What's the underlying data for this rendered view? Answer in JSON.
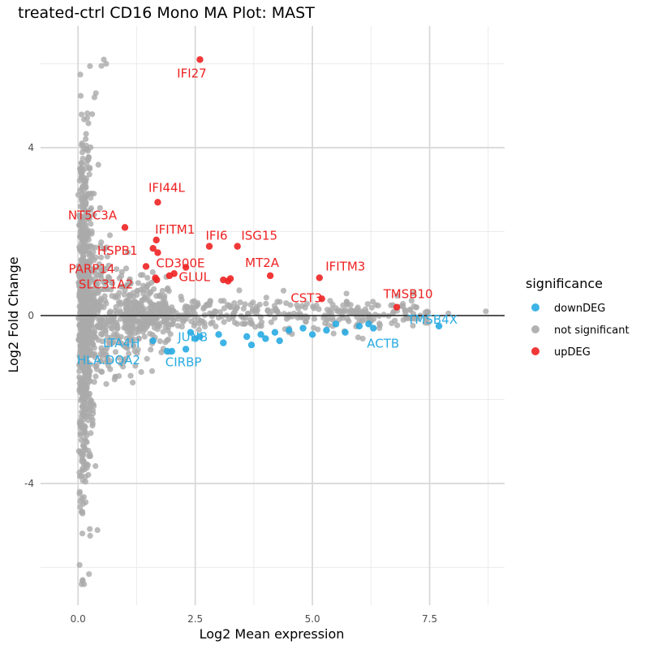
{
  "chart_data": {
    "type": "scatter",
    "title": "treated-ctrl CD16 Mono MA Plot: MAST",
    "xlabel": "Log2 Mean expression",
    "ylabel": "Log2 Fold Change",
    "xlim": [
      -0.8,
      9.1
    ],
    "ylim": [
      -6.9,
      6.9
    ],
    "x_ticks": [
      0,
      2.5,
      5,
      7.5
    ],
    "x_tick_labels": [
      "0.0",
      "2.5",
      "5.0",
      "7.5"
    ],
    "y_ticks": [
      -4,
      0,
      4
    ],
    "y_tick_labels": [
      "-4",
      "0",
      "4"
    ],
    "hline": 0,
    "grid": true,
    "legend": {
      "title": "significance",
      "position": "right",
      "entries": [
        {
          "label": "downDEG",
          "color": "#29ABE2"
        },
        {
          "label": "not significant",
          "color": "#AAAAAA"
        },
        {
          "label": "upDEG",
          "color": "#EE2222"
        }
      ]
    },
    "series": [
      {
        "name": "upDEG",
        "color": "#EE2222",
        "points": [
          {
            "gene": "IFI27",
            "x": 2.6,
            "y": 6.1,
            "labeled": true
          },
          {
            "gene": "IFI44L",
            "x": 1.7,
            "y": 2.7,
            "labeled": true
          },
          {
            "gene": "NT5C3A",
            "x": 1.0,
            "y": 2.1,
            "labeled": true
          },
          {
            "gene": "IFITM1",
            "x": 1.67,
            "y": 1.8,
            "labeled": true
          },
          {
            "gene": "HSPB1",
            "x": 1.6,
            "y": 1.6,
            "labeled": true
          },
          {
            "gene": "IFI6",
            "x": 2.8,
            "y": 1.65,
            "labeled": true
          },
          {
            "gene": "ISG15",
            "x": 3.4,
            "y": 1.65,
            "labeled": true
          },
          {
            "gene": "CD300E",
            "x": 1.7,
            "y": 1.5,
            "labeled": true
          },
          {
            "gene": "PARP14",
            "x": 1.45,
            "y": 1.17,
            "labeled": true
          },
          {
            "gene": "MT2A",
            "x": 4.1,
            "y": 0.95,
            "labeled": true
          },
          {
            "gene": "GLUL",
            "x": 2.05,
            "y": 1.0,
            "labeled": true
          },
          {
            "gene": "SLC31A2",
            "x": 1.65,
            "y": 0.9,
            "labeled": true
          },
          {
            "gene": "IFITM3",
            "x": 5.15,
            "y": 0.9,
            "labeled": true
          },
          {
            "gene": "CST3",
            "x": 5.2,
            "y": 0.4,
            "labeled": true
          },
          {
            "gene": "TMSB10",
            "x": 6.8,
            "y": 0.2,
            "labeled": true
          },
          {
            "gene": "",
            "x": 1.95,
            "y": 0.95,
            "labeled": false
          },
          {
            "gene": "",
            "x": 2.3,
            "y": 1.15,
            "labeled": false
          },
          {
            "gene": "",
            "x": 3.1,
            "y": 0.85,
            "labeled": false
          },
          {
            "gene": "",
            "x": 3.2,
            "y": 0.82,
            "labeled": false
          },
          {
            "gene": "",
            "x": 3.25,
            "y": 0.88,
            "labeled": false
          },
          {
            "gene": "",
            "x": 1.68,
            "y": 0.85,
            "labeled": false
          }
        ]
      },
      {
        "name": "downDEG",
        "color": "#29ABE2",
        "points": [
          {
            "gene": "TMSB4X",
            "x": 7.7,
            "y": -0.25,
            "labeled": true
          },
          {
            "gene": "ACTB",
            "x": 6.3,
            "y": -0.3,
            "labeled": true
          },
          {
            "gene": "LTA4H",
            "x": 1.6,
            "y": -0.6,
            "labeled": true
          },
          {
            "gene": "JUNB",
            "x": 2.5,
            "y": -0.55,
            "labeled": true
          },
          {
            "gene": "HLA.DQA2",
            "x": 1.9,
            "y": -0.85,
            "labeled": true
          },
          {
            "gene": "CIRBP",
            "x": 2.3,
            "y": -0.8,
            "labeled": true
          },
          {
            "gene": "",
            "x": 2.0,
            "y": -0.85,
            "labeled": false
          },
          {
            "gene": "",
            "x": 2.4,
            "y": -0.4,
            "labeled": false
          },
          {
            "gene": "",
            "x": 2.6,
            "y": -0.5,
            "labeled": false
          },
          {
            "gene": "",
            "x": 3.0,
            "y": -0.45,
            "labeled": false
          },
          {
            "gene": "",
            "x": 3.1,
            "y": -0.65,
            "labeled": false
          },
          {
            "gene": "",
            "x": 3.6,
            "y": -0.5,
            "labeled": false
          },
          {
            "gene": "",
            "x": 3.7,
            "y": -0.7,
            "labeled": false
          },
          {
            "gene": "",
            "x": 3.9,
            "y": -0.45,
            "labeled": false
          },
          {
            "gene": "",
            "x": 4.0,
            "y": -0.55,
            "labeled": false
          },
          {
            "gene": "",
            "x": 4.2,
            "y": -0.4,
            "labeled": false
          },
          {
            "gene": "",
            "x": 4.3,
            "y": -0.6,
            "labeled": false
          },
          {
            "gene": "",
            "x": 4.5,
            "y": -0.35,
            "labeled": false
          },
          {
            "gene": "",
            "x": 4.8,
            "y": -0.3,
            "labeled": false
          },
          {
            "gene": "",
            "x": 5.0,
            "y": -0.45,
            "labeled": false
          },
          {
            "gene": "",
            "x": 5.3,
            "y": -0.35,
            "labeled": false
          },
          {
            "gene": "",
            "x": 5.5,
            "y": -0.2,
            "labeled": false
          },
          {
            "gene": "",
            "x": 5.7,
            "y": -0.4,
            "labeled": false
          },
          {
            "gene": "",
            "x": 6.0,
            "y": -0.25,
            "labeled": false
          },
          {
            "gene": "",
            "x": 6.2,
            "y": -0.2,
            "labeled": false
          }
        ]
      }
    ]
  }
}
